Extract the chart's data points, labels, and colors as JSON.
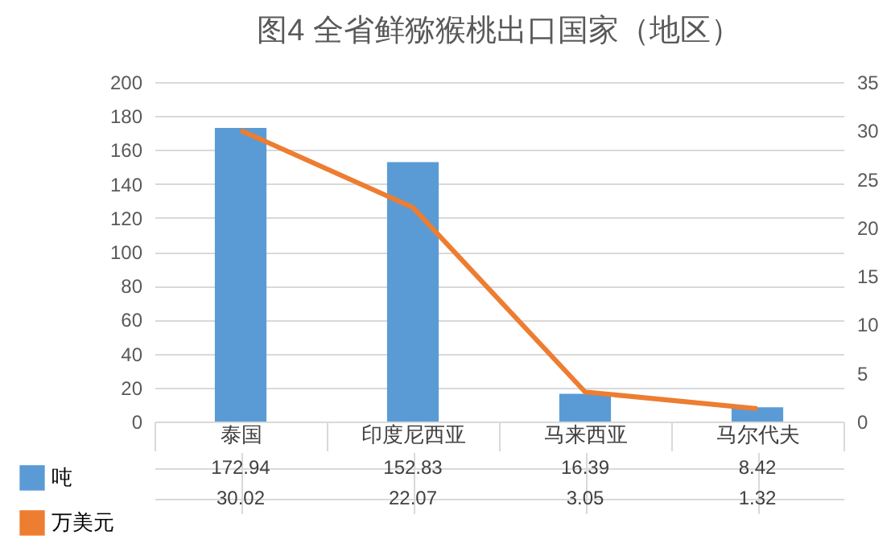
{
  "chart_data": {
    "type": "bar",
    "title": "图4  全省鲜猕猴桃出口国家（地区）",
    "categories": [
      "泰国",
      "印度尼西亚",
      "马来西亚",
      "马尔代夫"
    ],
    "series": [
      {
        "name": "吨",
        "type": "bar",
        "color": "#5b9bd5",
        "values": [
          172.94,
          152.83,
          16.39,
          8.42
        ]
      },
      {
        "name": "万美元",
        "type": "line",
        "axis": "y2",
        "color": "#ed7d31",
        "values": [
          30.02,
          22.07,
          3.05,
          1.32
        ]
      }
    ],
    "ylim": [
      0,
      200
    ],
    "yticks": [
      0,
      20,
      40,
      60,
      80,
      100,
      120,
      140,
      160,
      180,
      200
    ],
    "y2lim": [
      0,
      35
    ],
    "y2ticks": [
      0,
      5,
      10,
      15,
      20,
      25,
      30,
      35
    ],
    "grid": "y",
    "legend": "bottom left",
    "data_labels": true
  }
}
